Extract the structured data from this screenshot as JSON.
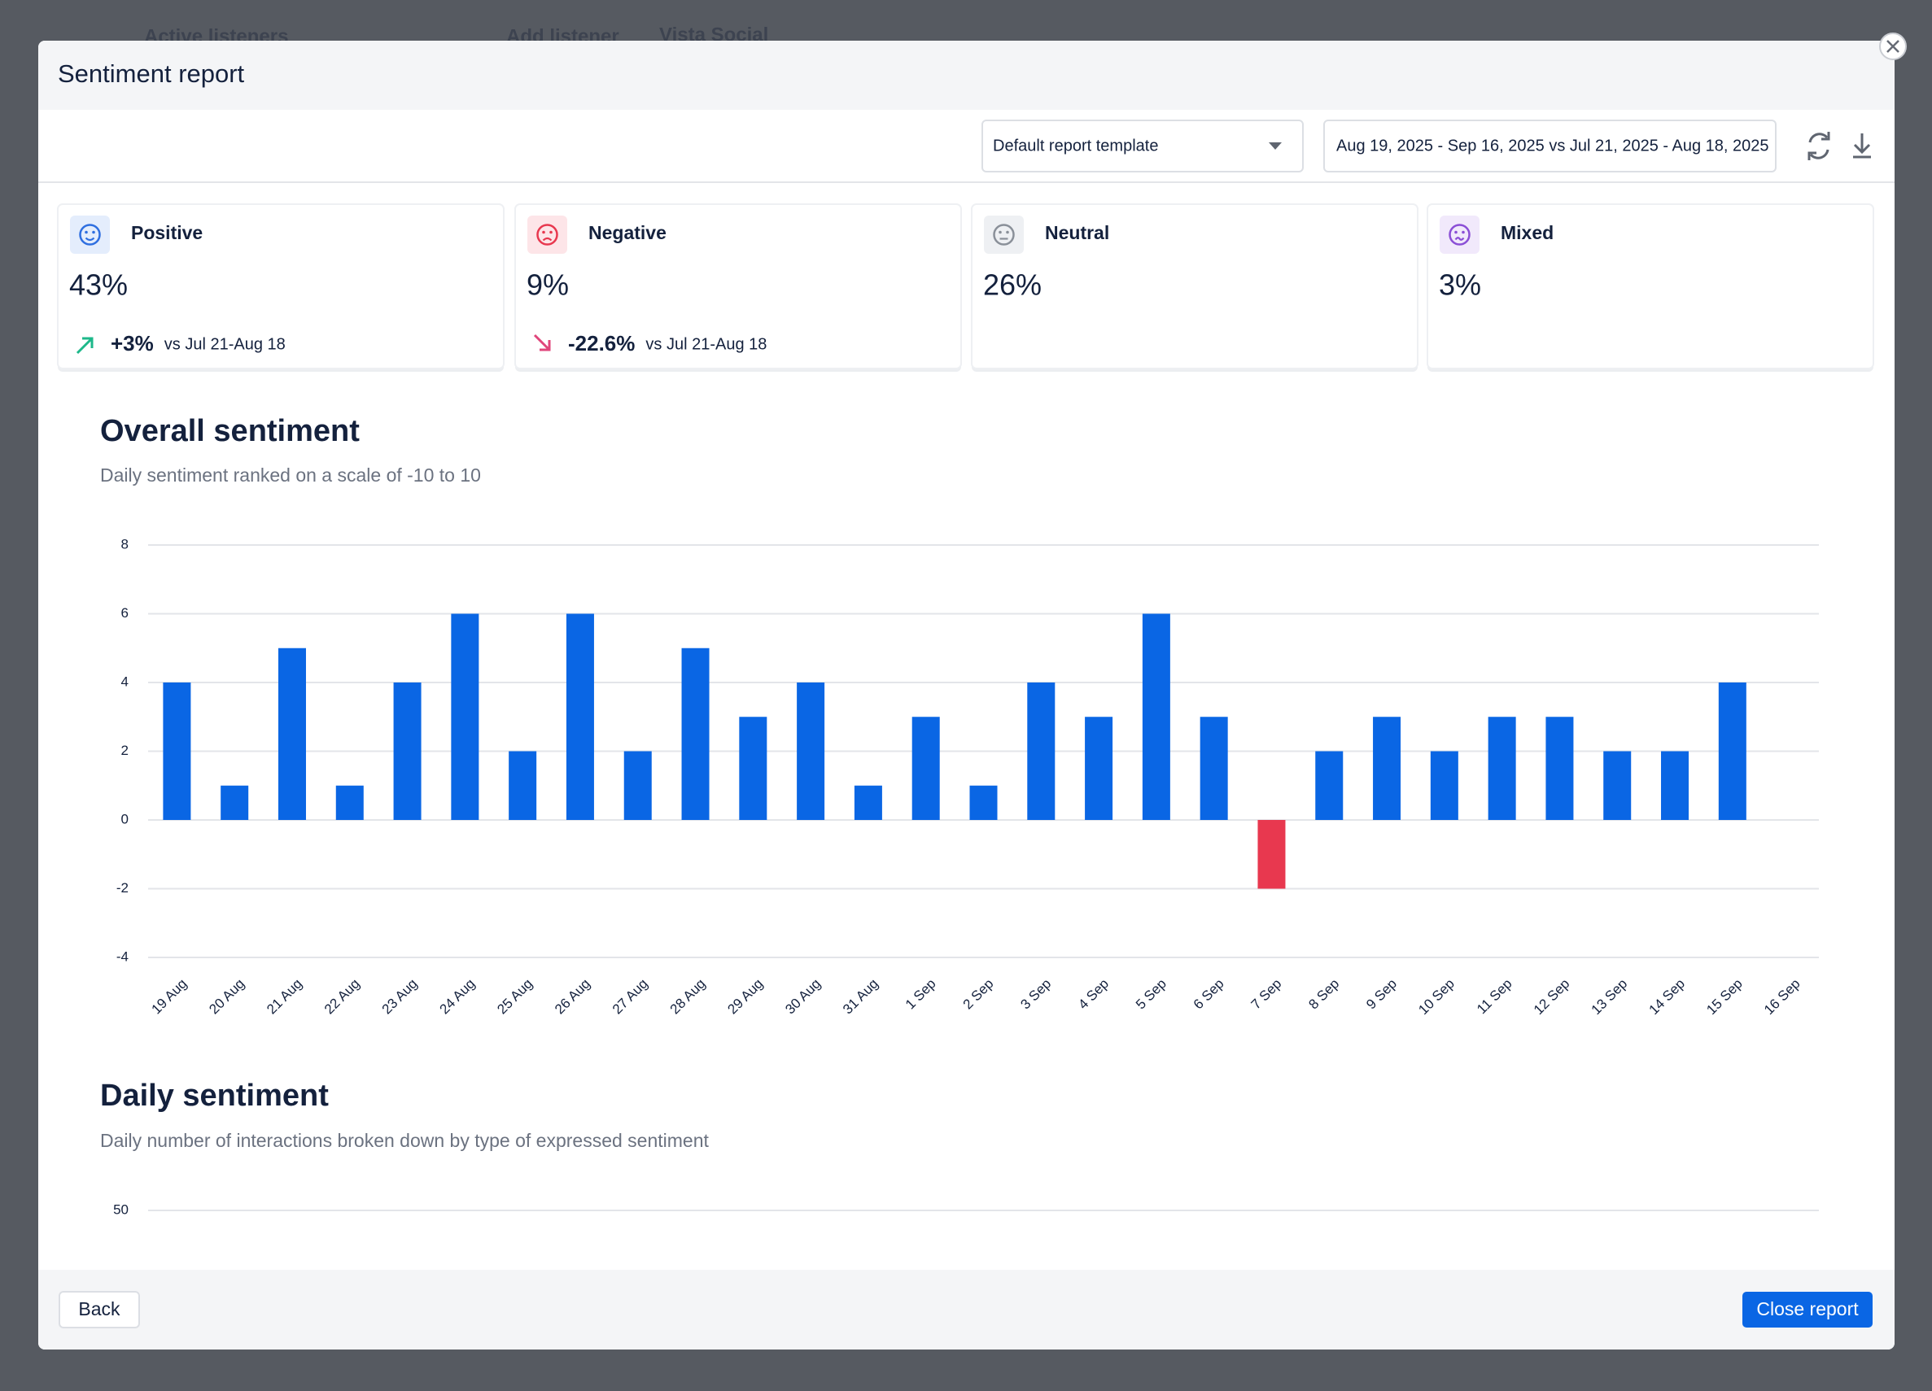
{
  "background": {
    "texts": [
      "Active listeners",
      "Add listener",
      "Vista Social"
    ]
  },
  "header": {
    "title": "Sentiment report"
  },
  "toolbar": {
    "template": "Default report template",
    "date_range": "Aug 19, 2025 - Sep 16, 2025 vs Jul 21, 2025 - Aug 18, 2025"
  },
  "cards": [
    {
      "label": "Positive",
      "value": "43%",
      "change": "+3%",
      "comparison": "vs Jul 21-Aug 18"
    },
    {
      "label": "Negative",
      "value": "9%",
      "change": "-22.6%",
      "comparison": "vs Jul 21-Aug 18"
    },
    {
      "label": "Neutral",
      "value": "26%"
    },
    {
      "label": "Mixed",
      "value": "3%"
    }
  ],
  "chart_data": [
    {
      "type": "bar",
      "title": "Overall sentiment",
      "subtitle": "Daily sentiment ranked on a scale of -10 to 10",
      "categories": [
        "19 Aug",
        "20 Aug",
        "21 Aug",
        "22 Aug",
        "23 Aug",
        "24 Aug",
        "25 Aug",
        "26 Aug",
        "27 Aug",
        "28 Aug",
        "29 Aug",
        "30 Aug",
        "31 Aug",
        "1 Sep",
        "2 Sep",
        "3 Sep",
        "4 Sep",
        "5 Sep",
        "6 Sep",
        "7 Sep",
        "8 Sep",
        "9 Sep",
        "10 Sep",
        "11 Sep",
        "12 Sep",
        "13 Sep",
        "14 Sep",
        "15 Sep",
        "16 Sep"
      ],
      "values": [
        4,
        1,
        5,
        1,
        4,
        6,
        2,
        6,
        2,
        5,
        3,
        4,
        1,
        3,
        1,
        4,
        3,
        6,
        3,
        -2,
        2,
        3,
        2,
        3,
        3,
        2,
        2,
        4,
        null
      ],
      "color": "#0a66e4",
      "negative_color": "#e8384f",
      "ylim": [
        -4,
        8
      ],
      "yticks": [
        -4,
        -2,
        0,
        2,
        4,
        6,
        8
      ],
      "grid": true
    },
    {
      "type": "bar",
      "title": "Daily sentiment",
      "subtitle": "Daily number of interactions broken down by type of expressed sentiment",
      "yticks": [
        50
      ],
      "grid": true
    }
  ],
  "footer": {
    "back": "Back",
    "close": "Close report"
  }
}
